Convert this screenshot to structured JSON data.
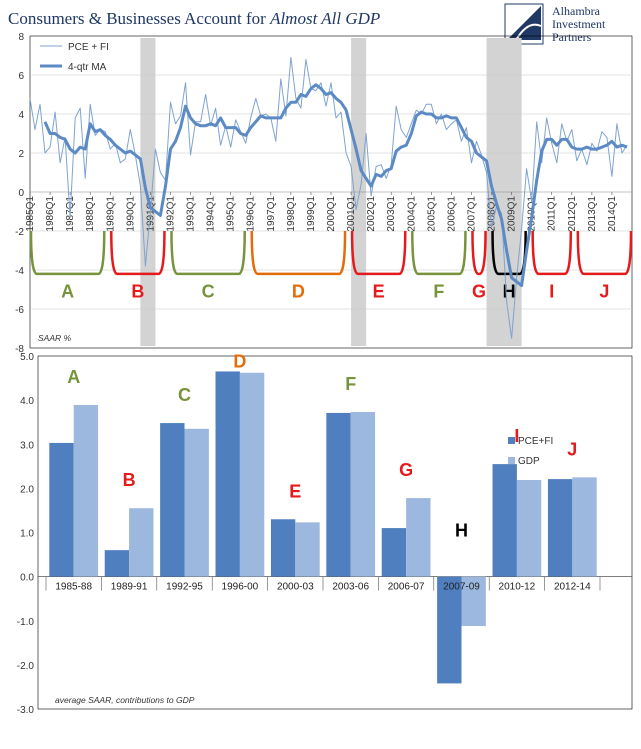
{
  "header": {
    "title_plain": "Consumers & Businesses Account for ",
    "title_italic": "Almost All GDP",
    "logo_lines": [
      "Alhambra",
      "Investment",
      "Partners"
    ]
  },
  "colors": {
    "line_thin": "#7fa3d0",
    "line_ma": "#5b8ac5",
    "bar_dark": "#4f7fbf",
    "bar_light": "#9db8de",
    "recession": "#d3d3d3",
    "olive": "#77933c",
    "red": "#e41a1c",
    "orange": "#e36c0a",
    "black": "#000000",
    "title": "#1f3864"
  },
  "chart_data": [
    {
      "type": "line",
      "y_unit_note": "SAAR %",
      "ylim": [
        -8,
        8
      ],
      "yticks": [
        -8,
        -6,
        -4,
        -2,
        0,
        2,
        4,
        6,
        8
      ],
      "xlim": [
        1985.0,
        2015.0
      ],
      "x_tick_labels": [
        "1985Q1",
        "1986Q1",
        "1987Q1",
        "1988Q1",
        "1989Q1",
        "1990Q1",
        "1991Q1",
        "1992Q1",
        "1993Q1",
        "1994Q1",
        "1995Q1",
        "1996Q1",
        "1997Q1",
        "1998Q1",
        "1999Q1",
        "2000Q1",
        "2001Q1",
        "2002Q1",
        "2003Q1",
        "2004Q1",
        "2005Q1",
        "2006Q1",
        "2007Q1",
        "2008Q1",
        "2009Q1",
        "2010Q1",
        "2011Q1",
        "2012Q1",
        "2013Q1",
        "2014Q1"
      ],
      "grid": true,
      "legend_position": "top-left",
      "recession_shading": [
        [
          1990.5,
          1991.25
        ],
        [
          2001.0,
          2001.75
        ],
        [
          2007.75,
          2009.5
        ]
      ],
      "series": [
        {
          "name": "PCE + FI",
          "x": [
            1985.0,
            1985.25,
            1985.5,
            1985.75,
            1986.0,
            1986.25,
            1986.5,
            1986.75,
            1987.0,
            1987.25,
            1987.5,
            1987.75,
            1988.0,
            1988.25,
            1988.5,
            1988.75,
            1989.0,
            1989.25,
            1989.5,
            1989.75,
            1990.0,
            1990.25,
            1990.5,
            1990.75,
            1991.0,
            1991.25,
            1991.5,
            1991.75,
            1992.0,
            1992.25,
            1992.5,
            1992.75,
            1993.0,
            1993.25,
            1993.5,
            1993.75,
            1994.0,
            1994.25,
            1994.5,
            1994.75,
            1995.0,
            1995.25,
            1995.5,
            1995.75,
            1996.0,
            1996.25,
            1996.5,
            1996.75,
            1997.0,
            1997.25,
            1997.5,
            1997.75,
            1998.0,
            1998.25,
            1998.5,
            1998.75,
            1999.0,
            1999.25,
            1999.5,
            1999.75,
            2000.0,
            2000.25,
            2000.5,
            2000.75,
            2001.0,
            2001.25,
            2001.5,
            2001.75,
            2002.0,
            2002.25,
            2002.5,
            2002.75,
            2003.0,
            2003.25,
            2003.5,
            2003.75,
            2004.0,
            2004.25,
            2004.5,
            2004.75,
            2005.0,
            2005.25,
            2005.5,
            2005.75,
            2006.0,
            2006.25,
            2006.5,
            2006.75,
            2007.0,
            2007.25,
            2007.5,
            2007.75,
            2008.0,
            2008.25,
            2008.5,
            2008.75,
            2009.0,
            2009.25,
            2009.5,
            2009.75,
            2010.0,
            2010.25,
            2010.5,
            2010.75,
            2011.0,
            2011.25,
            2011.5,
            2011.75,
            2012.0,
            2012.25,
            2012.5,
            2012.75,
            2013.0,
            2013.25,
            2013.5,
            2013.75,
            2014.0,
            2014.25,
            2014.5,
            2014.75
          ],
          "y": [
            4.8,
            3.2,
            4.5,
            2.0,
            2.3,
            4.1,
            1.5,
            2.8,
            -1.3,
            3.8,
            4.3,
            0.7,
            4.5,
            2.9,
            3.2,
            3.1,
            2.2,
            2.5,
            1.5,
            1.7,
            3.2,
            1.9,
            0.3,
            -3.8,
            -1.0,
            2.2,
            1.0,
            0.6,
            4.6,
            3.5,
            3.9,
            5.6,
            1.9,
            3.6,
            3.6,
            5.0,
            3.4,
            4.3,
            2.4,
            3.4,
            2.3,
            3.7,
            3.1,
            2.5,
            3.8,
            4.8,
            3.9,
            4.0,
            3.8,
            2.6,
            5.8,
            3.9,
            6.9,
            4.8,
            4.3,
            6.8,
            5.3,
            5.2,
            5.6,
            4.4,
            5.6,
            3.8,
            4.1,
            2.0,
            1.3,
            -0.9,
            0.4,
            3.0,
            -0.2,
            1.3,
            1.4,
            0.7,
            1.4,
            4.4,
            3.2,
            2.8,
            3.5,
            4.2,
            4.0,
            4.5,
            4.5,
            3.5,
            4.0,
            3.2,
            3.5,
            3.7,
            2.6,
            3.3,
            1.5,
            2.6,
            1.9,
            1.0,
            -1.8,
            -0.7,
            -1.1,
            -5.6,
            -7.5,
            -4.4,
            -1.9,
            1.2,
            -0.5,
            3.6,
            1.5,
            3.8,
            2.5,
            1.5,
            3.5,
            2.6,
            3.2,
            1.6,
            2.2,
            1.4,
            2.5,
            2.1,
            3.1,
            2.8,
            0.8,
            3.5,
            2.0,
            2.4
          ]
        },
        {
          "name": "4-qtr MA",
          "x": [
            1985.75,
            1986.0,
            1986.25,
            1986.5,
            1986.75,
            1987.0,
            1987.25,
            1987.5,
            1987.75,
            1988.0,
            1988.25,
            1988.5,
            1988.75,
            1989.0,
            1989.25,
            1989.5,
            1989.75,
            1990.0,
            1990.25,
            1990.5,
            1990.75,
            1991.0,
            1991.25,
            1991.5,
            1991.75,
            1992.0,
            1992.25,
            1992.5,
            1992.75,
            1993.0,
            1993.25,
            1993.5,
            1993.75,
            1994.0,
            1994.25,
            1994.5,
            1994.75,
            1995.0,
            1995.25,
            1995.5,
            1995.75,
            1996.0,
            1996.25,
            1996.5,
            1996.75,
            1997.0,
            1997.25,
            1997.5,
            1997.75,
            1998.0,
            1998.25,
            1998.5,
            1998.75,
            1999.0,
            1999.25,
            1999.5,
            1999.75,
            2000.0,
            2000.25,
            2000.5,
            2000.75,
            2001.0,
            2001.25,
            2001.5,
            2001.75,
            2002.0,
            2002.25,
            2002.5,
            2002.75,
            2003.0,
            2003.25,
            2003.5,
            2003.75,
            2004.0,
            2004.25,
            2004.5,
            2004.75,
            2005.0,
            2005.25,
            2005.5,
            2005.75,
            2006.0,
            2006.25,
            2006.5,
            2006.75,
            2007.0,
            2007.25,
            2007.5,
            2007.75,
            2008.0,
            2008.25,
            2008.5,
            2008.75,
            2009.0,
            2009.25,
            2009.5,
            2009.75,
            2010.0,
            2010.25,
            2010.5,
            2010.75,
            2011.0,
            2011.25,
            2011.5,
            2011.75,
            2012.0,
            2012.25,
            2012.5,
            2012.75,
            2013.0,
            2013.25,
            2013.5,
            2013.75,
            2014.0,
            2014.25,
            2014.5,
            2014.75
          ],
          "y": [
            3.6,
            3.0,
            3.0,
            2.8,
            2.7,
            2.2,
            2.0,
            2.3,
            2.2,
            3.5,
            3.1,
            3.2,
            2.9,
            2.7,
            2.4,
            2.2,
            2.0,
            2.1,
            1.9,
            1.7,
            0.2,
            -0.8,
            -1.0,
            -1.2,
            0.3,
            2.2,
            2.6,
            3.3,
            4.4,
            3.8,
            3.5,
            3.4,
            3.4,
            3.5,
            3.4,
            3.8,
            3.3,
            3.3,
            3.3,
            3.0,
            2.9,
            3.3,
            3.6,
            3.9,
            3.8,
            3.8,
            3.8,
            3.8,
            4.3,
            4.6,
            4.6,
            5.0,
            4.9,
            5.3,
            5.5,
            5.3,
            5.0,
            5.1,
            4.8,
            4.6,
            4.2,
            3.2,
            2.2,
            1.1,
            0.7,
            0.3,
            0.9,
            0.8,
            1.1,
            1.2,
            2.1,
            2.3,
            2.4,
            3.0,
            3.9,
            4.1,
            4.0,
            4.0,
            3.8,
            3.8,
            3.9,
            3.8,
            3.8,
            3.3,
            2.8,
            2.6,
            2.0,
            1.8,
            1.6,
            0.3,
            -0.6,
            -1.4,
            -3.0,
            -4.4,
            -4.6,
            -4.8,
            -3.0,
            -1.3,
            0.6,
            2.1,
            2.7,
            2.7,
            2.4,
            2.7,
            2.7,
            2.3,
            2.2,
            2.2,
            2.3,
            2.2,
            2.2,
            2.3,
            2.4,
            2.6,
            2.3,
            2.4,
            2.3
          ]
        }
      ],
      "periods": [
        {
          "label": "A",
          "color": "olive",
          "x_start": 1985.0,
          "x_end": 1988.75
        },
        {
          "label": "B",
          "color": "red",
          "x_start": 1989.0,
          "x_end": 1991.75
        },
        {
          "label": "C",
          "color": "olive",
          "x_start": 1992.0,
          "x_end": 1995.75
        },
        {
          "label": "D",
          "color": "orange",
          "x_start": 1996.0,
          "x_end": 2000.75
        },
        {
          "label": "E",
          "color": "red",
          "x_start": 2001.0,
          "x_end": 2003.75
        },
        {
          "label": "F",
          "color": "olive",
          "x_start": 2004.0,
          "x_end": 2006.75
        },
        {
          "label": "G",
          "color": "red",
          "x_start": 2007.0,
          "x_end": 2007.75
        },
        {
          "label": "H",
          "color": "black",
          "x_start": 2008.0,
          "x_end": 2009.75
        },
        {
          "label": "I",
          "color": "red",
          "x_start": 2010.0,
          "x_end": 2012.0
        },
        {
          "label": "J",
          "color": "red",
          "x_start": 2012.25,
          "x_end": 2015.0
        }
      ]
    },
    {
      "type": "bar",
      "note": "average SAAR, contributions to GDP",
      "ylim": [
        -3.0,
        5.0
      ],
      "yticks": [
        -3.0,
        -2.0,
        -1.0,
        0.0,
        1.0,
        2.0,
        3.0,
        4.0,
        5.0
      ],
      "ytick_labels": [
        "-3.0",
        "-2.0",
        "-1.0",
        "0.0",
        "1.0",
        "2.0",
        "3.0",
        "4.0",
        "5.0"
      ],
      "grid": false,
      "legend_position": "right",
      "categories": [
        "1985-88",
        "1989-91",
        "1992-95",
        "1996-00",
        "2000-03",
        "2003-06",
        "2006-07",
        "2007-09",
        "2010-12",
        "2012-14"
      ],
      "period_labels": [
        {
          "label": "A",
          "color": "olive"
        },
        {
          "label": "B",
          "color": "red"
        },
        {
          "label": "C",
          "color": "olive"
        },
        {
          "label": "D",
          "color": "orange"
        },
        {
          "label": "E",
          "color": "red"
        },
        {
          "label": "F",
          "color": "olive"
        },
        {
          "label": "G",
          "color": "red"
        },
        {
          "label": "H",
          "color": "black"
        },
        {
          "label": "I",
          "color": "red"
        },
        {
          "label": "J",
          "color": "red"
        }
      ],
      "series": [
        {
          "name": "PCE+FI",
          "color": "bar_dark",
          "values": [
            3.03,
            0.6,
            3.48,
            4.65,
            1.3,
            3.71,
            1.1,
            -2.42,
            2.55,
            2.21
          ]
        },
        {
          "name": "GDP",
          "color": "bar_light",
          "values": [
            3.89,
            1.55,
            3.35,
            4.62,
            1.23,
            3.73,
            1.78,
            -1.12,
            2.19,
            2.25
          ]
        }
      ]
    }
  ]
}
